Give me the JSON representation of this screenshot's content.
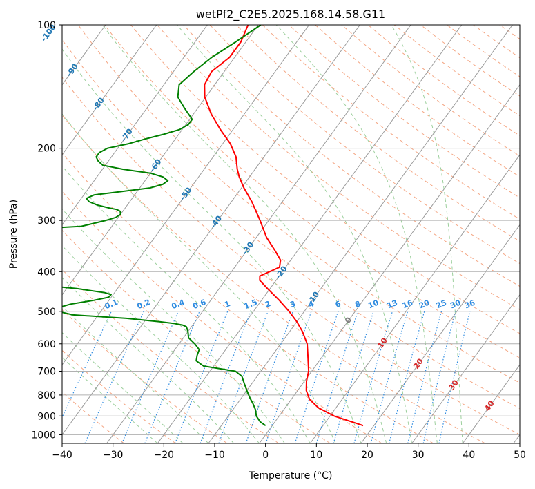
{
  "chart_data": {
    "type": "line",
    "title": "wetPf2_C2E5.2025.168.14.58.G11",
    "xlabel": "Temperature (°C)",
    "ylabel": "Pressure (hPa)",
    "xlim": [
      -40,
      50
    ],
    "ylim": [
      1050,
      100
    ],
    "y_scale": "log",
    "skew": true,
    "grid": true,
    "x_ticks": [
      "−40",
      "−30",
      "−20",
      "−10",
      "0",
      "10",
      "20",
      "30",
      "40",
      "50"
    ],
    "y_ticks": [
      "100",
      "200",
      "300",
      "400",
      "500",
      "600",
      "700",
      "800",
      "900",
      "1000"
    ],
    "colors": {
      "temperature": "#ff0000",
      "dewpoint": "#008000",
      "isotherm": "#9a9a9a",
      "dry_adiabat": "#f4a582",
      "moist_adiabat": "#9ccf9c",
      "mixing_ratio": "#2e8be0",
      "isobar": "#b0b0b0",
      "hot_label": "#d62728",
      "cold_label": "#1f77b4",
      "zero_label": "#7f7f7f",
      "mr_label": "#2e8be0"
    },
    "series": [
      {
        "key": "temperature",
        "pressure": [
          950,
          900,
          860,
          820,
          780,
          740,
          700,
          650,
          600,
          560,
          530,
          500,
          470,
          440,
          420,
          410,
          400,
          390,
          375,
          355,
          330,
          300,
          270,
          250,
          235,
          225,
          210,
          195,
          180,
          165,
          150,
          140,
          130,
          120,
          110,
          100
        ],
        "values": [
          17.9,
          10.8,
          6.6,
          3.6,
          1.7,
          0.4,
          -0.6,
          -2.6,
          -4.8,
          -7.5,
          -10.0,
          -13.0,
          -16.5,
          -20.5,
          -23.2,
          -23.8,
          -22.5,
          -21.2,
          -22.0,
          -24.5,
          -28.0,
          -31.7,
          -36.0,
          -39.5,
          -42.0,
          -43.5,
          -45.5,
          -48.5,
          -52.5,
          -56.5,
          -60.2,
          -62.0,
          -62.5,
          -61.0,
          -61.0,
          -62.0
        ]
      },
      {
        "key": "dewpoint",
        "pressure": [
          950,
          930,
          900,
          870,
          840,
          810,
          780,
          750,
          720,
          700,
          680,
          660,
          640,
          620,
          600,
          580,
          560,
          545,
          540,
          535,
          530,
          520,
          510,
          500,
          490,
          480,
          470,
          462,
          455,
          450,
          440,
          430,
          420,
          410,
          400,
          395,
          390,
          380,
          370,
          360,
          350,
          340,
          330,
          320,
          315,
          310,
          300,
          295,
          290,
          285,
          282,
          280,
          275,
          270,
          265,
          260,
          255,
          250,
          245,
          240,
          235,
          230,
          225,
          220,
          215,
          210,
          205,
          200,
          195,
          190,
          185,
          180,
          175,
          170,
          160,
          150,
          140,
          130,
          120,
          110,
          100
        ],
        "values": [
          -1.3,
          -2.9,
          -4.5,
          -5.5,
          -6.9,
          -8.5,
          -10.0,
          -11.5,
          -13.0,
          -15.0,
          -22.0,
          -24.2,
          -24.8,
          -25.2,
          -26.9,
          -29.0,
          -30.0,
          -31.0,
          -32.0,
          -34.0,
          -37.0,
          -44.0,
          -55.0,
          -58.5,
          -59.0,
          -57.0,
          -53.0,
          -50.5,
          -50.4,
          -52.0,
          -58.0,
          -67.0,
          -79.0,
          -83.0,
          -83.0,
          -83.5,
          -84.5,
          -85.5,
          -85.0,
          -84.0,
          -82.5,
          -81.0,
          -79.5,
          -78.5,
          -76.0,
          -66.0,
          -62.0,
          -60.5,
          -60.0,
          -60.5,
          -61.5,
          -63.0,
          -66.0,
          -68.0,
          -69.0,
          -68.0,
          -63.0,
          -58.0,
          -56.0,
          -55.5,
          -57.0,
          -60.0,
          -66.0,
          -70.5,
          -72.0,
          -73.0,
          -73.0,
          -72.0,
          -68.5,
          -66.0,
          -63.0,
          -60.5,
          -59.5,
          -59.5,
          -62.5,
          -65.5,
          -67.0,
          -66.0,
          -64.5,
          -62.0,
          -59.5
        ]
      }
    ],
    "isotherm_labels": [
      "-100",
      "-90",
      "-80",
      "-70",
      "-60",
      "-50",
      "-40",
      "-30",
      "-20",
      "-10",
      "0",
      "10",
      "20",
      "30",
      "40"
    ],
    "mixing_ratio_labels": [
      "0.1",
      "0.2",
      "0.4",
      "0.6",
      "1",
      "1.5",
      "2",
      "3",
      "4",
      "6",
      "8",
      "10",
      "13",
      "16",
      "20",
      "25",
      "30",
      "36"
    ]
  }
}
